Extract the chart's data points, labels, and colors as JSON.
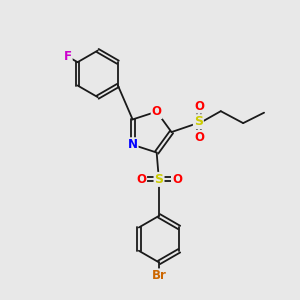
{
  "bg_color": "#e8e8e8",
  "bond_color": "#1a1a1a",
  "N_color": "#0000ff",
  "O_color": "#ff0000",
  "S_color": "#cccc00",
  "F_color": "#cc00cc",
  "Br_color": "#cc6600",
  "font_size": 8.5,
  "lw": 1.3,
  "xlim": [
    0,
    10
  ],
  "ylim": [
    0,
    10
  ]
}
